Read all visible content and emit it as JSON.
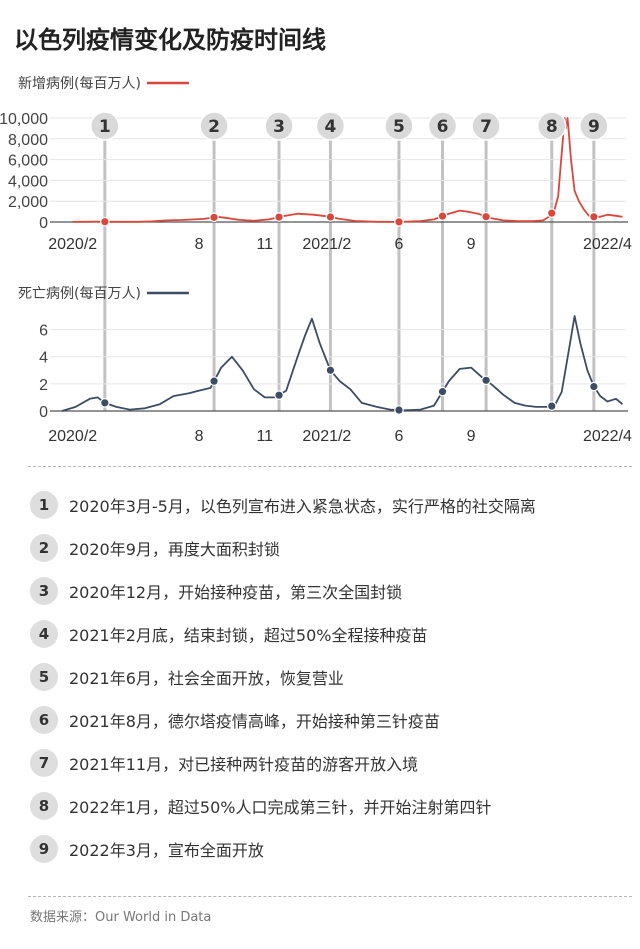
{
  "title": "以色列疫情变化及防疫时间线",
  "chart_data": [
    {
      "type": "line",
      "title": "",
      "series": [
        {
          "name": "新增病例(每百万人)",
          "color": "#d9473a"
        }
      ],
      "x_ticks": [
        "2020/2",
        "8",
        "11",
        "2021/2",
        "6",
        "9",
        "2022/4"
      ],
      "y_ticks": [
        "0",
        "2,000",
        "4,000",
        "6,000",
        "8,000",
        "10,000"
      ],
      "ylim": [
        0,
        10000
      ],
      "x": [
        "2020-03-01",
        "2020-04-01",
        "2020-05-01",
        "2020-06-01",
        "2020-06-20",
        "2020-07-10",
        "2020-08-01",
        "2020-09-01",
        "2020-09-20",
        "2020-10-01",
        "2020-10-20",
        "2020-11-10",
        "2020-12-01",
        "2020-12-20",
        "2021-01-10",
        "2021-01-20",
        "2021-02-01",
        "2021-02-20",
        "2021-03-10",
        "2021-04-01",
        "2021-05-01",
        "2021-06-01",
        "2021-07-01",
        "2021-07-20",
        "2021-08-10",
        "2021-08-25",
        "2021-09-05",
        "2021-09-20",
        "2021-10-05",
        "2021-10-25",
        "2021-11-15",
        "2021-12-05",
        "2021-12-20",
        "2021-12-28",
        "2022-01-05",
        "2022-01-10",
        "2022-01-13",
        "2022-01-16",
        "2022-01-19",
        "2022-01-21",
        "2022-01-23",
        "2022-01-25",
        "2022-01-28",
        "2022-02-02",
        "2022-02-08",
        "2022-02-15",
        "2022-02-22",
        "2022-03-01",
        "2022-03-10",
        "2022-03-20",
        "2022-04-01",
        "2022-04-10"
      ],
      "values": [
        10,
        30,
        15,
        20,
        60,
        150,
        190,
        300,
        500,
        400,
        200,
        120,
        250,
        550,
        800,
        750,
        700,
        550,
        300,
        100,
        20,
        10,
        80,
        250,
        800,
        1100,
        1000,
        800,
        400,
        150,
        80,
        80,
        150,
        500,
        1200,
        2500,
        5000,
        7500,
        10900,
        9000,
        11000,
        8500,
        6000,
        3000,
        2000,
        1200,
        600,
        500,
        500,
        700,
        600,
        500
      ]
    },
    {
      "type": "line",
      "title": "",
      "series": [
        {
          "name": "死亡病例(每百万人)",
          "color": "#3c4c63"
        }
      ],
      "x_ticks": [
        "2020/2",
        "8",
        "11",
        "2021/2",
        "6",
        "9",
        "2022/4"
      ],
      "y_ticks": [
        "0",
        "2",
        "4",
        "6"
      ],
      "ylim": [
        0,
        7
      ],
      "x": [
        "2020-02-15",
        "2020-03-05",
        "2020-03-25",
        "2020-04-05",
        "2020-04-15",
        "2020-05-01",
        "2020-05-20",
        "2020-06-10",
        "2020-07-01",
        "2020-07-20",
        "2020-08-10",
        "2020-08-25",
        "2020-09-10",
        "2020-09-25",
        "2020-10-10",
        "2020-10-25",
        "2020-11-10",
        "2020-11-25",
        "2020-12-10",
        "2020-12-25",
        "2021-01-10",
        "2021-01-20",
        "2021-01-30",
        "2021-02-10",
        "2021-02-25",
        "2021-03-10",
        "2021-03-25",
        "2021-04-10",
        "2021-05-01",
        "2021-05-20",
        "2021-06-10",
        "2021-07-01",
        "2021-07-20",
        "2021-08-10",
        "2021-08-25",
        "2021-09-10",
        "2021-09-25",
        "2021-10-10",
        "2021-10-25",
        "2021-11-10",
        "2021-11-25",
        "2021-12-10",
        "2021-12-25",
        "2022-01-05",
        "2022-01-15",
        "2022-01-25",
        "2022-02-02",
        "2022-02-10",
        "2022-02-20",
        "2022-03-01",
        "2022-03-10",
        "2022-03-20",
        "2022-04-01",
        "2022-04-10"
      ],
      "values": [
        0,
        0.3,
        0.9,
        1.0,
        0.6,
        0.3,
        0.1,
        0.2,
        0.5,
        1.1,
        1.3,
        1.5,
        1.7,
        3.2,
        4.0,
        3.0,
        1.6,
        1.0,
        1.0,
        1.5,
        4.0,
        5.5,
        6.8,
        5.0,
        3.0,
        2.2,
        1.6,
        0.6,
        0.3,
        0.1,
        0.05,
        0.1,
        0.4,
        2.2,
        3.1,
        3.2,
        2.5,
        1.9,
        1.2,
        0.6,
        0.4,
        0.3,
        0.3,
        0.4,
        1.4,
        4.5,
        7.6,
        5.0,
        3.0,
        1.8,
        1.1,
        0.7,
        0.9,
        0.5
      ]
    }
  ],
  "events": [
    {
      "num": "1",
      "date": "2020-04-15",
      "text": "2020年3月-5月，以色列宣布进入紧急状态，实行严格的社交隔离"
    },
    {
      "num": "2",
      "date": "2020-09-15",
      "text": "2020年9月，再度大面积封锁"
    },
    {
      "num": "3",
      "date": "2020-12-15",
      "text": "2020年12月，开始接种疫苗，第三次全国封锁"
    },
    {
      "num": "4",
      "date": "2021-02-25",
      "text": "2021年2月底，结束封锁，超过50%全程接种疫苗"
    },
    {
      "num": "5",
      "date": "2021-06-01",
      "text": "2021年6月，社会全面开放，恢复营业"
    },
    {
      "num": "6",
      "date": "2021-08-01",
      "text": "2021年8月，德尔塔疫情高峰，开始接种第三针疫苗"
    },
    {
      "num": "7",
      "date": "2021-10-01",
      "text": "2021年11月，对已接种两针疫苗的游客开放入境"
    },
    {
      "num": "8",
      "date": "2022-01-01",
      "text": "2022年1月，超过50%人口完成第三针，并开始注射第四针"
    },
    {
      "num": "9",
      "date": "2022-03-01",
      "text": "2022年3月，宣布全面开放"
    }
  ],
  "source": "数据来源：Our World in Data"
}
